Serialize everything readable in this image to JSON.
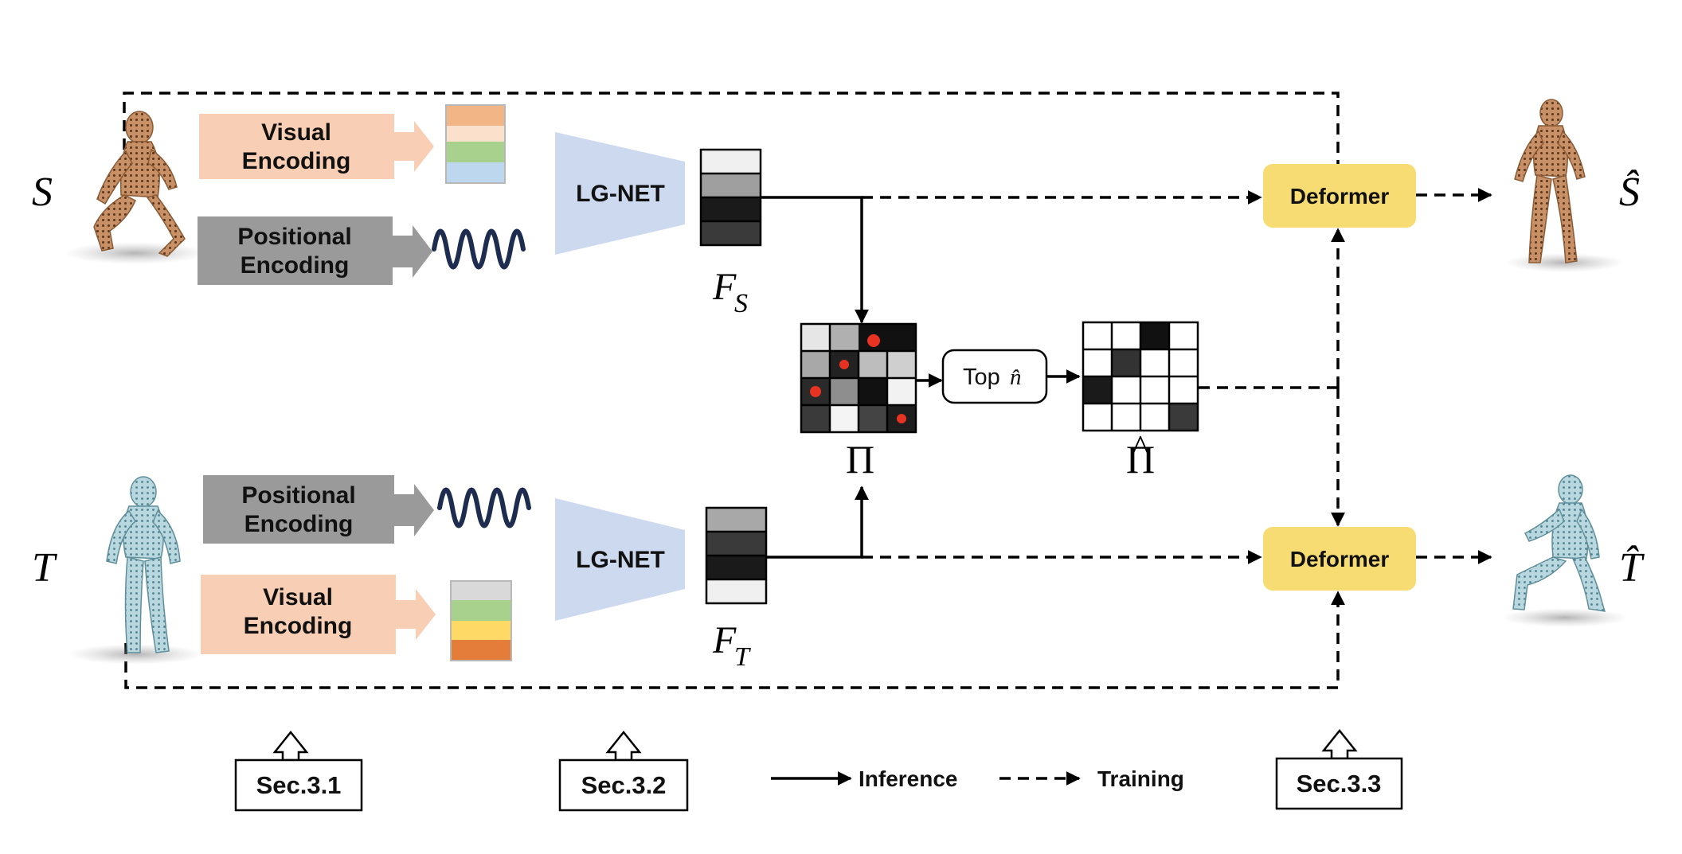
{
  "labels": {
    "S": "S",
    "S_hat": "Ŝ",
    "T": "T",
    "T_hat": "T̂",
    "F_S_main": "F",
    "F_S_sub": "S",
    "F_T_main": "F",
    "F_T_sub": "T",
    "Pi": "Π",
    "Pi_hat": "Π",
    "Pi_hat_accent": "^"
  },
  "blocks": {
    "visual_encoding_line1": "Visual",
    "visual_encoding_line2": "Encoding",
    "positional_encoding_line1": "Positional",
    "positional_encoding_line2": "Encoding",
    "lg_net": "LG-NET",
    "deformer": "Deformer",
    "top_n_prefix": "Top",
    "top_n_symbol": "n̂"
  },
  "sections": {
    "sec1": "Sec.3.1",
    "sec2": "Sec.3.2",
    "sec3": "Sec.3.3"
  },
  "legend": {
    "inference": "Inference",
    "training": "Training"
  },
  "colors": {
    "visual_block": "#f8cfb4",
    "positional_block": "#9a9a9a",
    "lg_net": "#cdd9ee",
    "deformer": "#f7dc74",
    "match_dot": "#e83323",
    "wave": "#1e2c4f",
    "mesh_source": "#b5784a",
    "mesh_target": "#9fc3cc"
  }
}
